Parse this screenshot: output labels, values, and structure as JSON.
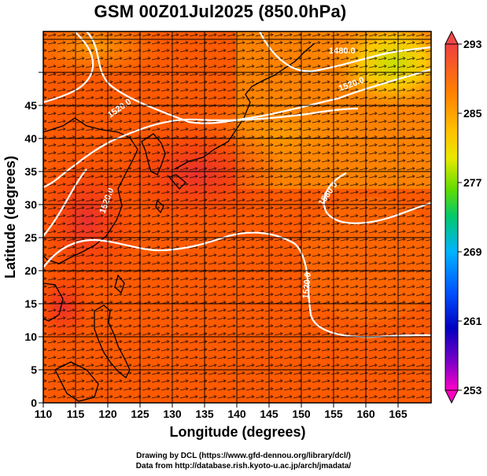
{
  "title": "GSM 00Z01Jul2025 (850.0hPa)",
  "x_axis": {
    "label": "Longitude (degrees)",
    "range": [
      110,
      170
    ],
    "ticks": [
      "110",
      "115",
      "120",
      "125",
      "130",
      "135",
      "140",
      "145",
      "150",
      "155",
      "160",
      "165"
    ]
  },
  "y_axis": {
    "label": "Latitude  (degrees)",
    "range": [
      0,
      50
    ],
    "ticks": [
      "0",
      "5",
      "10",
      "15",
      "20",
      "25",
      "30",
      "35",
      "40",
      "45"
    ]
  },
  "colorbar": {
    "ticks": [
      "293",
      "285",
      "277",
      "269",
      "261",
      "253"
    ],
    "range": [
      253,
      293
    ],
    "colors_top_to_bottom": [
      "#f03c3c",
      "#ff7a00",
      "#ffb000",
      "#e6e600",
      "#80e000",
      "#00c800",
      "#00c8a0",
      "#00b4ff",
      "#0064ff",
      "#0000c8",
      "#8000c8",
      "#ff00c8"
    ]
  },
  "contour_labels": [
    "1480.0",
    "1520.0",
    "1520.0",
    "1520.0",
    "1560.0",
    "1520.0"
  ],
  "credit": {
    "line1": "Drawing by DCL (https://www.gfd-dennou.org/library/dcl/)",
    "line2": "Data from http://database.rish.kyoto-u.ac.jp/arch/jmadata/"
  },
  "colors": {
    "field_warm": "#ff4a00",
    "field_orange": "#ff8a00",
    "field_yellow": "#ffd000",
    "contour": "#ffffff",
    "grid": "#000000"
  }
}
